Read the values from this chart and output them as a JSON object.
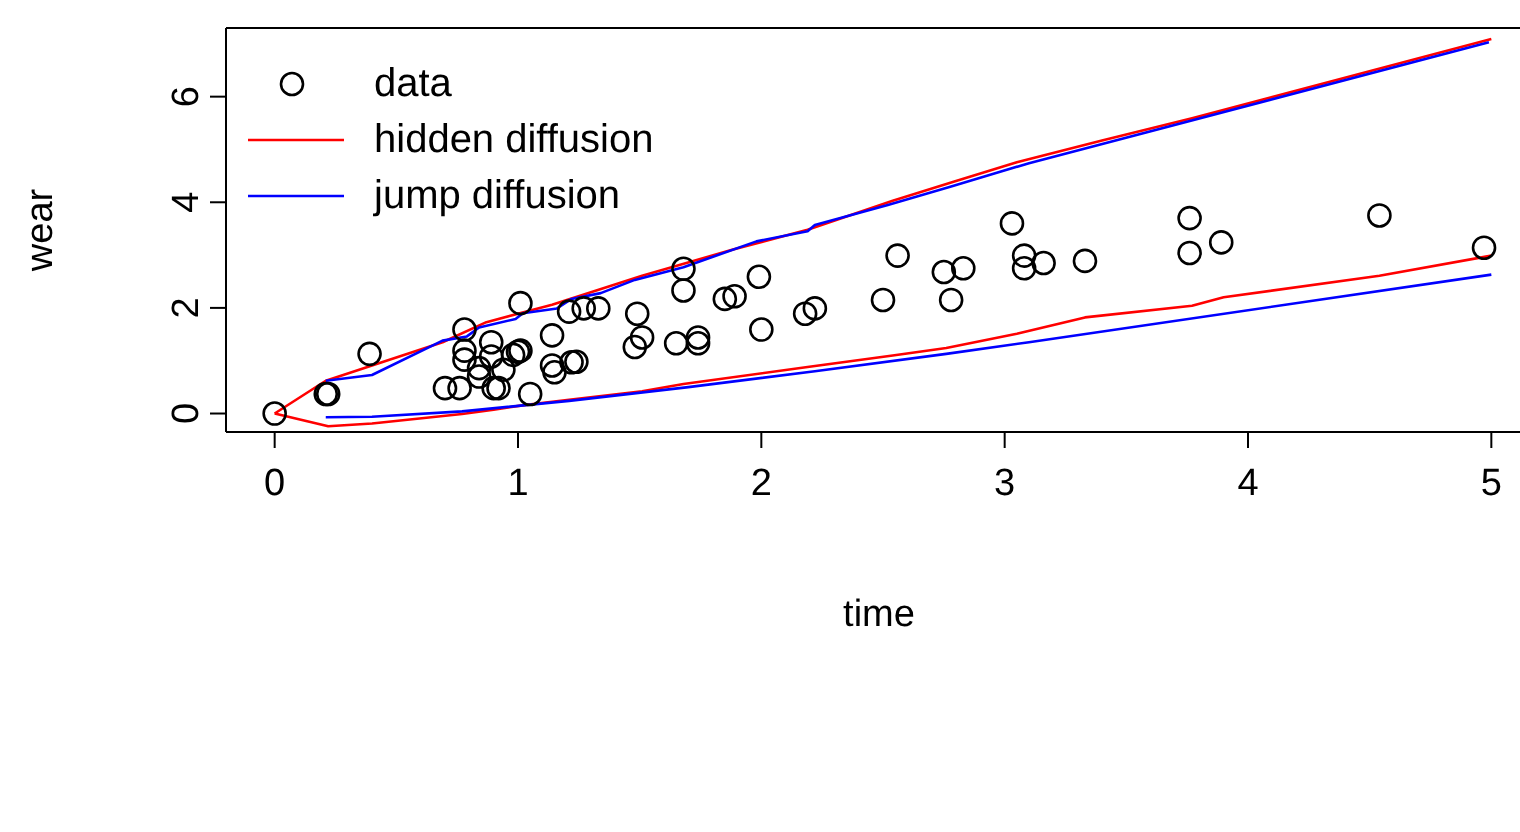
{
  "chart_data": {
    "type": "line",
    "xlabel": "time",
    "ylabel": "wear",
    "xlim": [
      -0.2,
      5.2
    ],
    "ylim": [
      -0.35,
      7.3
    ],
    "xticks": [
      0,
      1,
      2,
      3,
      4,
      5
    ],
    "yticks": [
      0,
      2,
      4,
      6
    ],
    "grid": false,
    "legend": "top left",
    "series": [
      {
        "name": "data",
        "type": "scatter",
        "color": "#000000",
        "marker": "circle",
        "x": [
          0,
          0.21,
          0.22,
          0.39,
          0.7,
          0.76,
          0.78,
          0.78,
          0.78,
          0.84,
          0.84,
          0.89,
          0.89,
          0.9,
          0.92,
          0.94,
          0.98,
          1.0,
          1.01,
          1.01,
          1.05,
          1.14,
          1.14,
          1.15,
          1.22,
          1.24,
          1.21,
          1.27,
          1.33,
          1.48,
          1.51,
          1.49,
          1.65,
          1.74,
          1.74,
          1.68,
          1.68,
          1.85,
          1.89,
          1.99,
          2.0,
          2.18,
          2.22,
          2.5,
          2.56,
          2.75,
          2.83,
          2.78,
          3.03,
          3.08,
          3.08,
          3.16,
          3.33,
          3.76,
          3.76,
          3.89,
          4.54,
          4.97
        ],
        "values": [
          0,
          0.37,
          0.37,
          1.13,
          0.48,
          0.48,
          1.59,
          1.19,
          1.02,
          0.86,
          0.7,
          1.35,
          1.08,
          0.48,
          0.48,
          0.83,
          1.11,
          1.17,
          1.19,
          2.09,
          0.37,
          1.48,
          0.91,
          0.78,
          0.97,
          0.98,
          1.93,
          1.99,
          1.99,
          1.26,
          1.44,
          1.89,
          1.33,
          1.44,
          1.33,
          2.74,
          2.33,
          2.17,
          2.22,
          2.59,
          1.59,
          1.89,
          1.99,
          2.15,
          2.99,
          2.68,
          2.75,
          2.15,
          3.6,
          2.99,
          2.75,
          2.85,
          2.89,
          3.7,
          3.04,
          3.24,
          3.75,
          3.14
        ]
      },
      {
        "name": "hidden diffusion",
        "color": "#ff0000",
        "marker": "none",
        "line_style": "solid",
        "x": [
          0,
          0.21,
          0.69,
          0.87,
          1.14,
          1.51,
          1.88,
          2.19,
          2.54,
          2.79,
          3.05,
          3.4,
          3.77,
          5.0
        ],
        "values": [
          0,
          0.62,
          1.35,
          1.73,
          2.06,
          2.61,
          3.1,
          3.48,
          4.03,
          4.39,
          4.76,
          5.17,
          5.59,
          7.09
        ]
      },
      {
        "color": "#ff0000",
        "marker": "none",
        "line_style": "solid",
        "x": [
          0,
          0.22,
          0.4,
          0.77,
          0.9,
          1.01,
          1.21,
          1.51,
          1.68,
          2.19,
          2.54,
          2.76,
          3.05,
          3.33,
          3.77,
          3.9,
          4.54,
          5.0
        ],
        "values": [
          0,
          -0.24,
          -0.19,
          -0.01,
          0.07,
          0.15,
          0.26,
          0.42,
          0.56,
          0.88,
          1.1,
          1.24,
          1.51,
          1.82,
          2.04,
          2.2,
          2.61,
          2.99
        ]
      },
      {
        "name": "jump diffusion",
        "color": "#0000ff",
        "marker": "none",
        "line_style": "solid",
        "x": [
          0.21,
          0.4,
          0.69,
          0.79,
          0.84,
          0.99,
          1.02,
          1.16,
          1.22,
          1.34,
          1.48,
          1.68,
          1.98,
          2.19,
          2.22,
          2.52,
          2.78,
          3.1,
          4.99
        ],
        "values": [
          0.62,
          0.73,
          1.38,
          1.46,
          1.63,
          1.79,
          1.9,
          1.99,
          2.17,
          2.28,
          2.53,
          2.77,
          3.26,
          3.45,
          3.57,
          3.95,
          4.3,
          4.74,
          7.03
        ]
      },
      {
        "color": "#0000ff",
        "marker": "none",
        "line_style": "solid",
        "x": [
          0.21,
          0.4,
          0.77,
          1.21,
          1.7,
          2.22,
          2.76,
          3.1,
          5.0
        ],
        "values": [
          -0.07,
          -0.06,
          0.04,
          0.24,
          0.5,
          0.8,
          1.13,
          1.35,
          2.63
        ]
      }
    ]
  }
}
